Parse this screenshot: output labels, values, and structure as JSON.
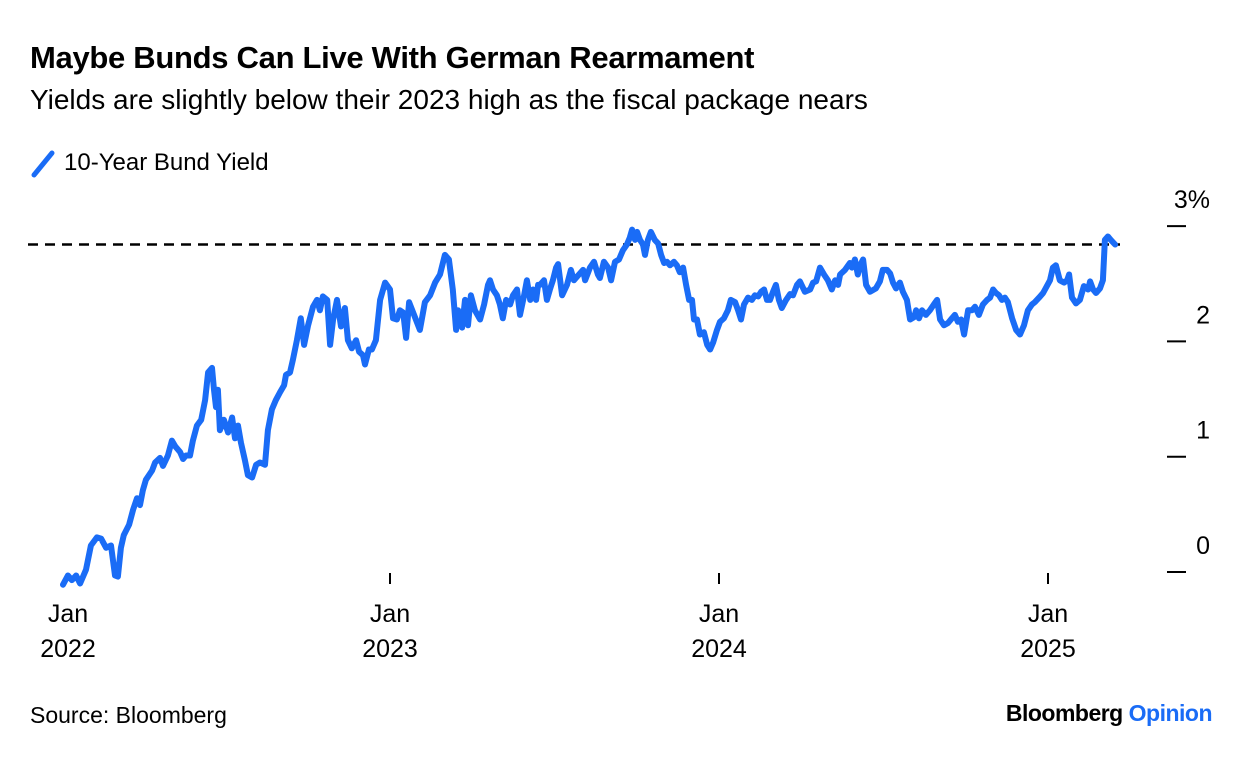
{
  "chart_data": {
    "type": "line",
    "title": "Maybe Bunds Can Live With German Rearmament",
    "subtitle": "Yields are slightly below their 2023 high as the fiscal package nears",
    "legend": [
      {
        "name": "10-Year Bund Yield",
        "color": "#1a6cf6"
      }
    ],
    "legend_placement": "top-left",
    "source": "Source: Bloomberg",
    "ylabel": "",
    "xlabel": "",
    "ylim": [
      0,
      3
    ],
    "xlim": [
      2022.0,
      2025.2
    ],
    "y_ticks": [
      {
        "value": 3,
        "label": "3%"
      },
      {
        "value": 2,
        "label": "2"
      },
      {
        "value": 1,
        "label": "1"
      },
      {
        "value": 0,
        "label": "0"
      }
    ],
    "x_ticks": [
      {
        "value": 2022,
        "month": "Jan",
        "year": "2022"
      },
      {
        "value": 2023,
        "month": "Jan",
        "year": "2023"
      },
      {
        "value": 2024,
        "month": "Jan",
        "year": "2024"
      },
      {
        "value": 2025,
        "month": "Jan",
        "year": "2025"
      }
    ],
    "reference_line": {
      "value": 2.84,
      "style": "dashed"
    },
    "grid": false,
    "x_origin_year": 2022,
    "series": [
      {
        "name": "10-Year Bund Yield",
        "x_years_offset": [
          0.006,
          0.021,
          0.033,
          0.046,
          0.058,
          0.076,
          0.091,
          0.109,
          0.122,
          0.137,
          0.152,
          0.164,
          0.173,
          0.182,
          0.191,
          0.207,
          0.219,
          0.231,
          0.24,
          0.249,
          0.258,
          0.277,
          0.286,
          0.301,
          0.31,
          0.325,
          0.337,
          0.347,
          0.362,
          0.371,
          0.38,
          0.392,
          0.401,
          0.413,
          0.426,
          0.438,
          0.447,
          0.459,
          0.465,
          0.471,
          0.477,
          0.483,
          0.495,
          0.508,
          0.52,
          0.529,
          0.538,
          0.547,
          0.559,
          0.568,
          0.581,
          0.593,
          0.605,
          0.62,
          0.629,
          0.641,
          0.653,
          0.666,
          0.678,
          0.684,
          0.696,
          0.705,
          0.717,
          0.729,
          0.739,
          0.751,
          0.766,
          0.778,
          0.787,
          0.796,
          0.809,
          0.818,
          0.827,
          0.839,
          0.851,
          0.863,
          0.872,
          0.884,
          0.897,
          0.906,
          0.918,
          0.924,
          0.936,
          0.945,
          0.957,
          0.97,
          0.985,
          1.0,
          1.009,
          1.021,
          1.03,
          1.04,
          1.049,
          1.058,
          1.091,
          1.106,
          1.122,
          1.137,
          1.152,
          1.167,
          1.179,
          1.191,
          1.201,
          1.207,
          1.219,
          1.228,
          1.237,
          1.246,
          1.258,
          1.274,
          1.286,
          1.298,
          1.304,
          1.313,
          1.325,
          1.334,
          1.343,
          1.353,
          1.365,
          1.374,
          1.386,
          1.395,
          1.407,
          1.416,
          1.426,
          1.435,
          1.444,
          1.45,
          1.456,
          1.468,
          1.477,
          1.486,
          1.495,
          1.505,
          1.511,
          1.523,
          1.538,
          1.55,
          1.559,
          1.571,
          1.587,
          1.593,
          1.608,
          1.62,
          1.632,
          1.638,
          1.65,
          1.663,
          1.672,
          1.684,
          1.696,
          1.708,
          1.72,
          1.729,
          1.736,
          1.745,
          1.751,
          1.76,
          1.769,
          1.775,
          1.784,
          1.793,
          1.805,
          1.815,
          1.824,
          1.833,
          1.842,
          1.851,
          1.863,
          1.872,
          1.881,
          1.891,
          1.9,
          1.909,
          1.918,
          1.924,
          1.933,
          1.942,
          1.954,
          1.964,
          1.973,
          1.982,
          1.994,
          2.003,
          2.015,
          2.027,
          2.036,
          2.049,
          2.058,
          2.067,
          2.076,
          2.088,
          2.1,
          2.109,
          2.119,
          2.128,
          2.137,
          2.146,
          2.155,
          2.164,
          2.173,
          2.182,
          2.191,
          2.204,
          2.216,
          2.225,
          2.237,
          2.246,
          2.261,
          2.277,
          2.286,
          2.295,
          2.307,
          2.319,
          2.331,
          2.343,
          2.353,
          2.362,
          2.368,
          2.383,
          2.398,
          2.404,
          2.413,
          2.422,
          2.429,
          2.438,
          2.447,
          2.459,
          2.477,
          2.489,
          2.498,
          2.511,
          2.52,
          2.529,
          2.538,
          2.55,
          2.559,
          2.571,
          2.581,
          2.593,
          2.599,
          2.608,
          2.617,
          2.629,
          2.641,
          2.653,
          2.663,
          2.672,
          2.684,
          2.696,
          2.708,
          2.717,
          2.726,
          2.736,
          2.745,
          2.757,
          2.769,
          2.778,
          2.79,
          2.802,
          2.815,
          2.824,
          2.833,
          2.842,
          2.851,
          2.86,
          2.869,
          2.878,
          2.891,
          2.903,
          2.915,
          2.927,
          2.939,
          2.951,
          2.96,
          2.973,
          2.985,
          2.991,
          3.006,
          3.015,
          3.024,
          3.036,
          3.049,
          3.058,
          3.064,
          3.073,
          3.085,
          3.097,
          3.109,
          3.122,
          3.128,
          3.137,
          3.146,
          3.158,
          3.167,
          3.173,
          3.182,
          3.191,
          3.204
        ],
        "y": [
          -0.11,
          -0.03,
          -0.07,
          -0.03,
          -0.1,
          0.02,
          0.23,
          0.3,
          0.29,
          0.21,
          0.23,
          -0.03,
          -0.04,
          0.21,
          0.32,
          0.41,
          0.54,
          0.64,
          0.58,
          0.71,
          0.8,
          0.88,
          0.95,
          0.99,
          0.92,
          1.01,
          1.14,
          1.09,
          1.04,
          0.98,
          1.01,
          1.01,
          1.14,
          1.27,
          1.32,
          1.49,
          1.73,
          1.77,
          1.58,
          1.43,
          1.58,
          1.23,
          1.32,
          1.21,
          1.34,
          1.16,
          1.27,
          1.12,
          0.97,
          0.84,
          0.82,
          0.93,
          0.95,
          0.93,
          1.23,
          1.41,
          1.49,
          1.56,
          1.62,
          1.71,
          1.73,
          1.84,
          2.01,
          2.2,
          1.97,
          2.14,
          2.3,
          2.36,
          2.27,
          2.39,
          2.36,
          1.97,
          2.19,
          2.36,
          2.13,
          2.29,
          2.01,
          1.94,
          2.01,
          1.91,
          1.88,
          1.8,
          1.93,
          1.93,
          2.01,
          2.36,
          2.51,
          2.45,
          2.2,
          2.19,
          2.27,
          2.25,
          2.03,
          2.34,
          2.1,
          2.34,
          2.4,
          2.51,
          2.58,
          2.75,
          2.71,
          2.45,
          2.1,
          2.27,
          2.12,
          2.36,
          2.14,
          2.4,
          2.27,
          2.19,
          2.32,
          2.49,
          2.53,
          2.45,
          2.4,
          2.32,
          2.2,
          2.36,
          2.32,
          2.4,
          2.45,
          2.23,
          2.39,
          2.53,
          2.36,
          2.45,
          2.36,
          2.49,
          2.49,
          2.53,
          2.36,
          2.45,
          2.53,
          2.64,
          2.67,
          2.4,
          2.49,
          2.62,
          2.53,
          2.57,
          2.62,
          2.53,
          2.64,
          2.69,
          2.58,
          2.55,
          2.69,
          2.64,
          2.53,
          2.69,
          2.71,
          2.79,
          2.84,
          2.9,
          2.97,
          2.88,
          2.95,
          2.88,
          2.84,
          2.75,
          2.88,
          2.95,
          2.88,
          2.85,
          2.75,
          2.68,
          2.69,
          2.66,
          2.69,
          2.66,
          2.6,
          2.64,
          2.49,
          2.36,
          2.36,
          2.19,
          2.19,
          2.06,
          2.08,
          1.97,
          1.93,
          1.99,
          2.1,
          2.17,
          2.2,
          2.27,
          2.36,
          2.34,
          2.27,
          2.19,
          2.32,
          2.38,
          2.36,
          2.4,
          2.39,
          2.43,
          2.45,
          2.36,
          2.36,
          2.43,
          2.49,
          2.36,
          2.29,
          2.36,
          2.41,
          2.4,
          2.49,
          2.52,
          2.43,
          2.45,
          2.51,
          2.52,
          2.64,
          2.58,
          2.53,
          2.45,
          2.53,
          2.49,
          2.58,
          2.62,
          2.68,
          2.64,
          2.71,
          2.58,
          2.66,
          2.71,
          2.49,
          2.43,
          2.46,
          2.52,
          2.62,
          2.62,
          2.59,
          2.51,
          2.46,
          2.51,
          2.43,
          2.36,
          2.19,
          2.21,
          2.27,
          2.2,
          2.27,
          2.23,
          2.27,
          2.32,
          2.36,
          2.19,
          2.14,
          2.16,
          2.2,
          2.23,
          2.17,
          2.19,
          2.06,
          2.27,
          2.27,
          2.3,
          2.23,
          2.32,
          2.36,
          2.38,
          2.45,
          2.42,
          2.4,
          2.36,
          2.38,
          2.34,
          2.2,
          2.1,
          2.06,
          2.14,
          2.27,
          2.32,
          2.34,
          2.38,
          2.42,
          2.45,
          2.53,
          2.64,
          2.66,
          2.53,
          2.51,
          2.53,
          2.58,
          2.38,
          2.33,
          2.36,
          2.48,
          2.45,
          2.52,
          2.45,
          2.42,
          2.46,
          2.53,
          2.88,
          2.91,
          2.88,
          2.84
        ]
      }
    ]
  },
  "branding": {
    "name": "Bloomberg",
    "suffix": "Opinion"
  }
}
